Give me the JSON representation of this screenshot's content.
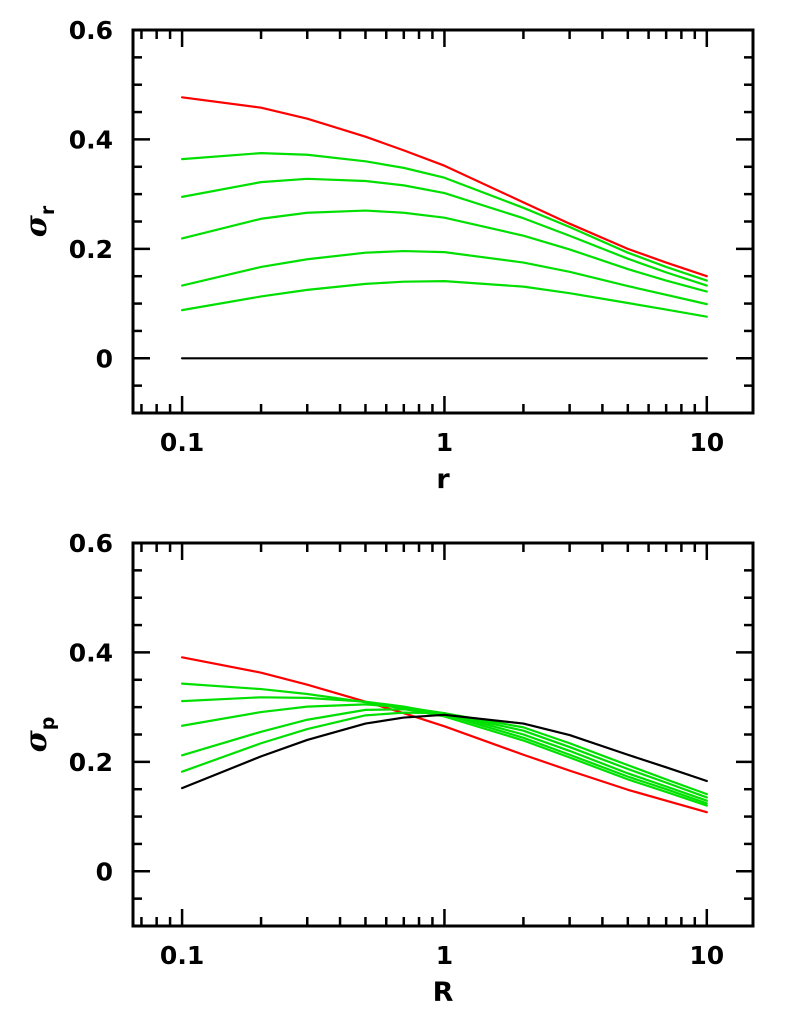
{
  "chart_data": [
    {
      "type": "line",
      "xlabel": "r",
      "ylabel": {
        "symbol": "σ",
        "subscript": "r"
      },
      "xscale": "log",
      "xlim": [
        0.065,
        15
      ],
      "ylim": [
        -0.1,
        0.6
      ],
      "x_ticks": [
        {
          "value": 0.1,
          "label": "0.1"
        },
        {
          "value": 1,
          "label": "1"
        },
        {
          "value": 10,
          "label": "10"
        }
      ],
      "y_ticks": [
        {
          "value": 0,
          "label": "0"
        },
        {
          "value": 0.2,
          "label": "0.2"
        },
        {
          "value": 0.4,
          "label": "0.4"
        },
        {
          "value": 0.6,
          "label": "0.6"
        }
      ],
      "y_minor_step": 0.05,
      "grid": false,
      "x": [
        0.1,
        0.2,
        0.3,
        0.5,
        0.7,
        1,
        2,
        3,
        5,
        7,
        10
      ],
      "series": [
        {
          "color": "#ff0000",
          "values": [
            0.477,
            0.458,
            0.438,
            0.405,
            0.38,
            0.352,
            0.285,
            0.246,
            0.2,
            0.175,
            0.15
          ]
        },
        {
          "color": "#00e000",
          "values": [
            0.364,
            0.375,
            0.372,
            0.36,
            0.348,
            0.33,
            0.275,
            0.24,
            0.193,
            0.167,
            0.142
          ]
        },
        {
          "color": "#00e000",
          "values": [
            0.295,
            0.322,
            0.328,
            0.324,
            0.316,
            0.302,
            0.256,
            0.224,
            0.182,
            0.157,
            0.133
          ]
        },
        {
          "color": "#00e000",
          "values": [
            0.219,
            0.255,
            0.266,
            0.27,
            0.266,
            0.257,
            0.224,
            0.199,
            0.163,
            0.142,
            0.122
          ]
        },
        {
          "color": "#00e000",
          "values": [
            0.133,
            0.167,
            0.181,
            0.193,
            0.196,
            0.194,
            0.175,
            0.158,
            0.132,
            0.116,
            0.099
          ]
        },
        {
          "color": "#00e000",
          "values": [
            0.088,
            0.113,
            0.125,
            0.136,
            0.14,
            0.141,
            0.131,
            0.119,
            0.101,
            0.089,
            0.076
          ]
        },
        {
          "color": "#000000",
          "values": [
            0,
            0,
            0,
            0,
            0,
            0,
            0,
            0,
            0,
            0,
            0
          ]
        }
      ]
    },
    {
      "type": "line",
      "xlabel": "R",
      "ylabel": {
        "symbol": "σ",
        "subscript": "p"
      },
      "xscale": "log",
      "xlim": [
        0.065,
        15
      ],
      "ylim": [
        -0.1,
        0.6
      ],
      "x_ticks": [
        {
          "value": 0.1,
          "label": "0.1"
        },
        {
          "value": 1,
          "label": "1"
        },
        {
          "value": 10,
          "label": "10"
        }
      ],
      "y_ticks": [
        {
          "value": 0,
          "label": "0"
        },
        {
          "value": 0.2,
          "label": "0.2"
        },
        {
          "value": 0.4,
          "label": "0.4"
        },
        {
          "value": 0.6,
          "label": "0.6"
        }
      ],
      "y_minor_step": 0.05,
      "grid": false,
      "x": [
        0.1,
        0.2,
        0.3,
        0.5,
        0.7,
        1,
        2,
        3,
        5,
        7,
        10
      ],
      "series": [
        {
          "color": "#ff0000",
          "values": [
            0.391,
            0.363,
            0.341,
            0.31,
            0.289,
            0.265,
            0.213,
            0.184,
            0.149,
            0.129,
            0.108
          ]
        },
        {
          "color": "#00e000",
          "values": [
            0.343,
            0.333,
            0.324,
            0.309,
            0.297,
            0.283,
            0.239,
            0.208,
            0.168,
            0.145,
            0.12
          ]
        },
        {
          "color": "#00e000",
          "values": [
            0.311,
            0.318,
            0.317,
            0.31,
            0.301,
            0.287,
            0.244,
            0.213,
            0.173,
            0.15,
            0.124
          ]
        },
        {
          "color": "#00e000",
          "values": [
            0.266,
            0.291,
            0.301,
            0.305,
            0.3,
            0.289,
            0.25,
            0.22,
            0.179,
            0.155,
            0.129
          ]
        },
        {
          "color": "#00e000",
          "values": [
            0.212,
            0.255,
            0.277,
            0.295,
            0.296,
            0.289,
            0.257,
            0.227,
            0.187,
            0.162,
            0.135
          ]
        },
        {
          "color": "#00e000",
          "values": [
            0.182,
            0.234,
            0.26,
            0.285,
            0.29,
            0.289,
            0.263,
            0.234,
            0.194,
            0.168,
            0.141
          ]
        },
        {
          "color": "#000000",
          "values": [
            0.152,
            0.21,
            0.24,
            0.27,
            0.281,
            0.286,
            0.27,
            0.249,
            0.213,
            0.19,
            0.165
          ]
        }
      ]
    }
  ]
}
